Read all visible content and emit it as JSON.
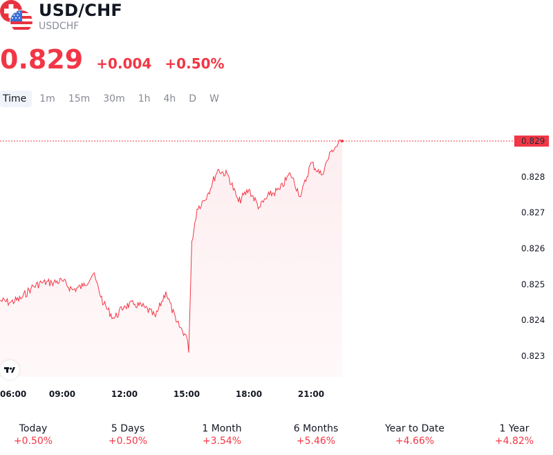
{
  "header": {
    "title": "USD/CHF",
    "symbol": "USDCHF",
    "price": "0.829",
    "change": "+0.004",
    "change_pct": "+0.50%"
  },
  "tabs": [
    "Time",
    "1m",
    "15m",
    "30m",
    "1h",
    "4h",
    "D",
    "W"
  ],
  "active_tab": "Time",
  "chart_data": {
    "type": "area",
    "xlabel": "",
    "ylabel": "",
    "x_ticks": [
      "06:00",
      "09:00",
      "12:00",
      "15:00",
      "18:00",
      "21:00"
    ],
    "y_ticks": [
      0.823,
      0.824,
      0.825,
      0.826,
      0.827,
      0.828,
      0.829
    ],
    "ylim": [
      0.8226,
      0.8296
    ],
    "current_price_label": "0.829",
    "grid": false,
    "series": [
      {
        "x": [
          "06:00",
          "06:30",
          "07:00",
          "07:30",
          "08:00",
          "08:30",
          "09:00",
          "09:30",
          "10:00",
          "10:30",
          "11:00",
          "11:30",
          "12:00",
          "12:30",
          "13:00",
          "13:30",
          "14:00",
          "14:30",
          "15:00",
          "15:06",
          "15:15",
          "15:30",
          "16:00",
          "16:30",
          "17:00",
          "17:30",
          "18:00",
          "18:30",
          "19:00",
          "19:30",
          "20:00",
          "20:30",
          "21:00",
          "21:30",
          "22:00",
          "22:30"
        ],
        "y": [
          0.82455,
          0.8245,
          0.8246,
          0.8249,
          0.82505,
          0.82505,
          0.8251,
          0.82485,
          0.82495,
          0.8253,
          0.82445,
          0.82405,
          0.8244,
          0.82445,
          0.82435,
          0.8241,
          0.8248,
          0.82395,
          0.82355,
          0.8231,
          0.8262,
          0.8271,
          0.8275,
          0.8282,
          0.82805,
          0.8273,
          0.82765,
          0.82715,
          0.8275,
          0.82765,
          0.8281,
          0.82745,
          0.8284,
          0.82805,
          0.82875,
          0.829
        ]
      }
    ]
  },
  "colors": {
    "accent": "#f23645",
    "fill_top": "#fdeff0",
    "text": "#131722",
    "muted": "#868993"
  },
  "performance": [
    {
      "label": "Today",
      "value": "+0.50%"
    },
    {
      "label": "5 Days",
      "value": "+0.50%"
    },
    {
      "label": "1 Month",
      "value": "+3.54%"
    },
    {
      "label": "6 Months",
      "value": "+5.46%"
    },
    {
      "label": "Year to Date",
      "value": "+4.66%"
    },
    {
      "label": "1 Year",
      "value": "+4.82%"
    }
  ],
  "icons": {
    "flags": "swiss-us-flags-icon",
    "logo": "tradingview-logo-icon"
  }
}
